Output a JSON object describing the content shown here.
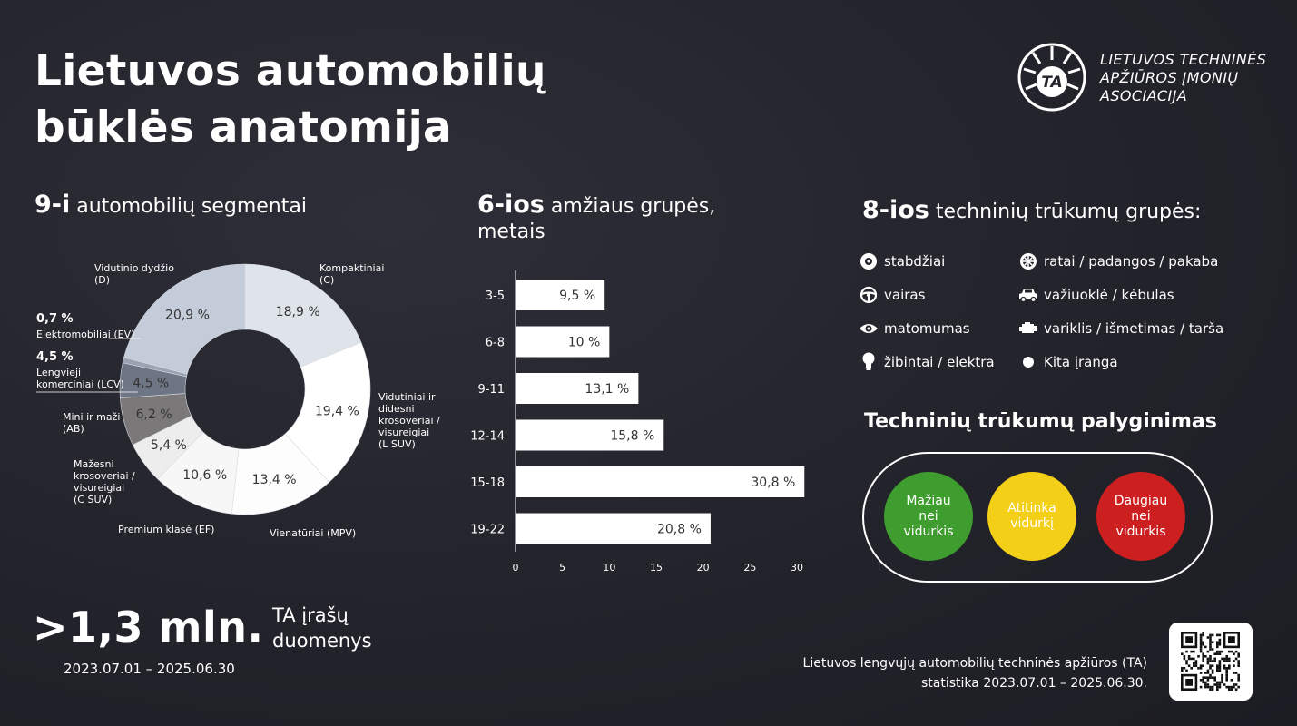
{
  "title_line1": "Lietuvos automobilių",
  "title_line2": "būklės anatomija",
  "association": {
    "logo_text": "TA",
    "line1": "LIETUVOS TECHNINĖS",
    "line2": "APŽIŪROS ĮMONIŲ",
    "line3": "ASOCIACIJA"
  },
  "segments_heading": {
    "num": "9-i",
    "text": " automobilių segmentai"
  },
  "ages_heading": {
    "num": "6-ios",
    "text": " amžiaus grupės,",
    "line2": "metais"
  },
  "defects_heading": {
    "num": "8-ios",
    "text": " techninių trūkumų grupės:"
  },
  "defect_groups": [
    {
      "icon": "brake-disc-icon",
      "label": "stabdžiai"
    },
    {
      "icon": "steering-wheel-icon",
      "label": "vairas"
    },
    {
      "icon": "eye-icon",
      "label": "matomumas"
    },
    {
      "icon": "light-bulb-icon",
      "label": "žibintai / elektra"
    },
    {
      "icon": "wheel-icon",
      "label": "ratai / padangos / pakaba"
    },
    {
      "icon": "car-icon",
      "label": "važiuoklė / kėbulas"
    },
    {
      "icon": "engine-icon",
      "label": "variklis / išmetimas / tarša"
    },
    {
      "icon": "dot-icon",
      "label": "Kita įranga"
    }
  ],
  "comparison": {
    "heading": "Techninių trūkumų palyginimas",
    "below": "Mažiau nei vidurkis",
    "equal": "Atitinka vidurkį",
    "above": "Daugiau nei vidurkis",
    "colors": {
      "below": "#3e9d2e",
      "equal": "#f4cf18",
      "above": "#cc1f1f"
    }
  },
  "records": {
    "value": ">1,3 mln.",
    "label_line1": "TA įrašų",
    "label_line2": "duomenys",
    "period": "2023.07.01 – 2025.06.30"
  },
  "footer": {
    "line1": "Lietuvos lengvųjų automobilių techninės apžiūros (TA)",
    "line2": "statistika 2023.07.01 – 2025.06.30."
  },
  "chart_data": [
    {
      "type": "pie",
      "title": "9-i automobilių segmentai",
      "donut": true,
      "slices": [
        {
          "label": "Kompaktiniai (C)",
          "value": 18.9,
          "value_label": "18,9 %",
          "color": "#dfe3ea"
        },
        {
          "label": "Vidutiniai ir didesni krosoveriai / visureigiai (L SUV)",
          "value": 19.4,
          "value_label": "19,4 %",
          "color": "#ffffff"
        },
        {
          "label": "Vienatūriai (MPV)",
          "value": 13.4,
          "value_label": "13,4 %",
          "color": "#fdfdfd"
        },
        {
          "label": "Premium klasė (EF)",
          "value": 10.6,
          "value_label": "10,6 %",
          "color": "#f7f7f7"
        },
        {
          "label": "Mažesni krosoveriai / visureigiai (C SUV)",
          "value": 5.4,
          "value_label": "5,4 %",
          "color": "#ededee"
        },
        {
          "label": "Mini ir maži (AB)",
          "value": 6.2,
          "value_label": "6,2 %",
          "color": "#7a7878"
        },
        {
          "label": "Lengvieji komerciniai (LCV)",
          "value": 4.5,
          "value_label": "4,5 %",
          "color": "#6e7585"
        },
        {
          "label": "Elektromobiliai (EV)",
          "value": 0.7,
          "value_label": "0,7 %",
          "color": "#9aa3b2"
        },
        {
          "label": "Vidutinio dydžio (D)",
          "value": 20.9,
          "value_label": "20,9 %",
          "color": "#c3ccd8"
        }
      ],
      "outer_labels": {
        "compact": [
          "Kompaktiniai",
          "(C)"
        ],
        "lsuv": [
          "Vidutiniai ir",
          "didesni",
          "krosoveriai /",
          "visureigiai",
          "(L SUV)"
        ],
        "mpv": [
          "Vienatūriai (MPV)"
        ],
        "premium": [
          "Premium klasė (EF)"
        ],
        "csuv": [
          "Mažesni",
          "krosoveriai /",
          "visureigiai",
          "(C SUV)"
        ],
        "mini": [
          "Mini ir maži",
          "(AB)"
        ],
        "lcv": [
          "4,5 %",
          "Lengvieji",
          "komerciniai (LCV)"
        ],
        "ev": [
          "0,7 %",
          "Elektromobiliai (EV)"
        ],
        "mid": [
          "Vidutinio dydžio",
          "(D)"
        ]
      }
    },
    {
      "type": "bar",
      "orientation": "horizontal",
      "title": "6-ios amžiaus grupės, metais",
      "categories": [
        "3-5",
        "6-8",
        "9-11",
        "12-14",
        "15-18",
        "19-22"
      ],
      "values": [
        9.5,
        10,
        13.1,
        15.8,
        30.8,
        20.8
      ],
      "value_labels": [
        "9,5 %",
        "10 %",
        "13,1 %",
        "15,8 %",
        "30,8 %",
        "20,8 %"
      ],
      "xlim": [
        0,
        30
      ],
      "ticks": [
        "0",
        "5",
        "10",
        "15",
        "20",
        "25",
        "30"
      ],
      "grid": false
    }
  ]
}
